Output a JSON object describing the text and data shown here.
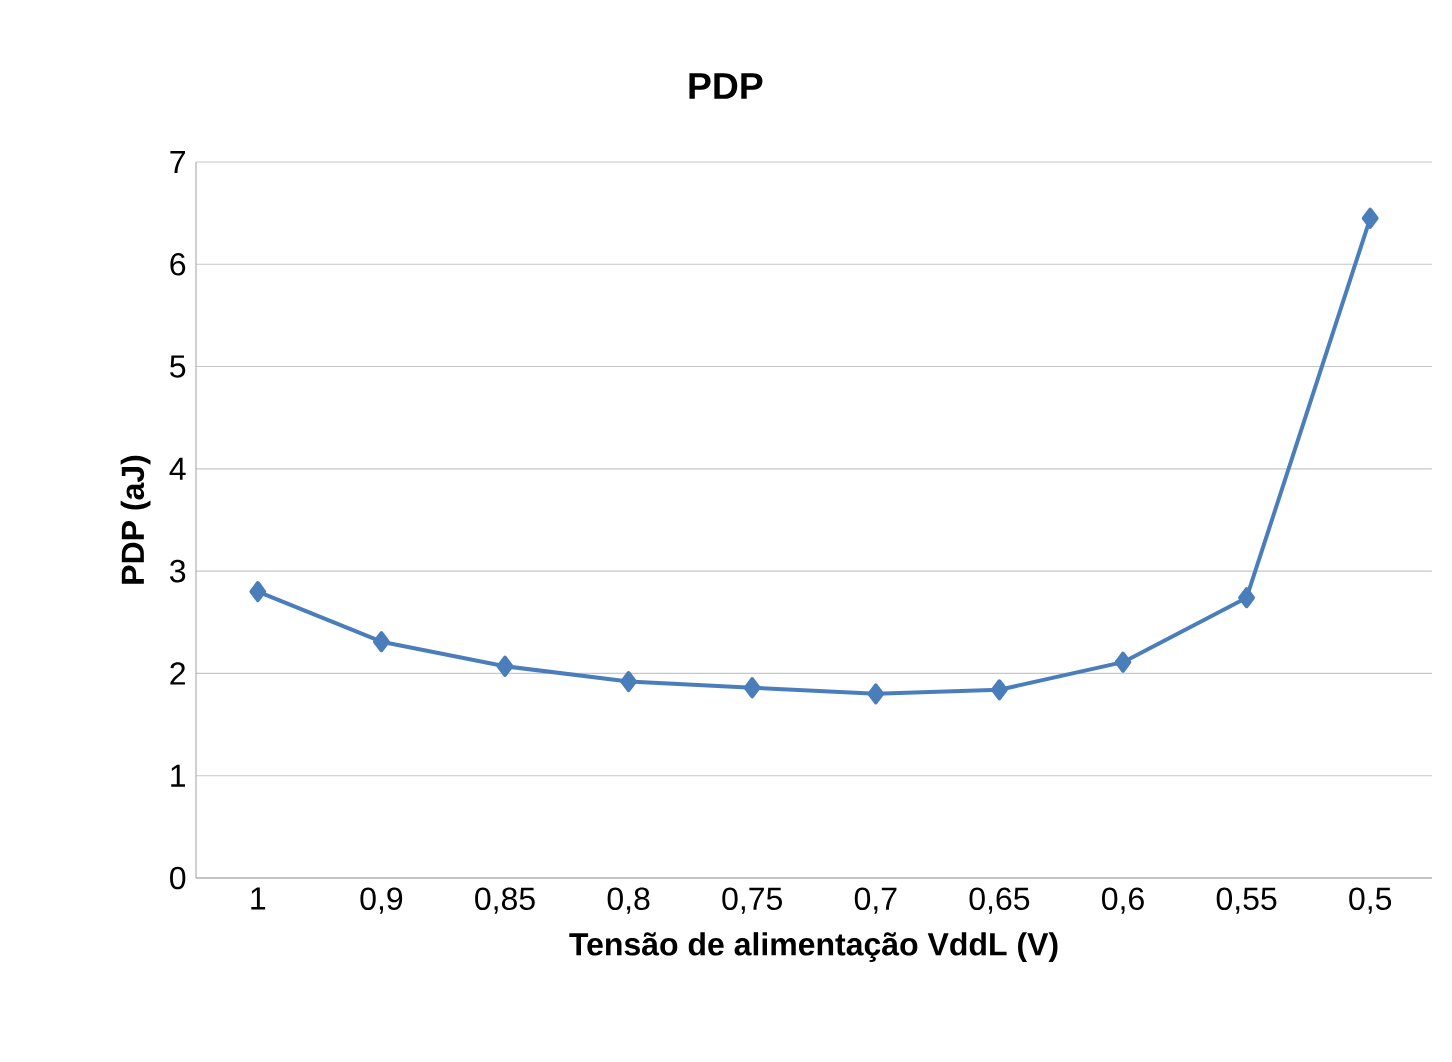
{
  "chart_data": {
    "type": "line",
    "title": "PDP",
    "xlabel": "Tensão de alimentação VddL (V)",
    "ylabel": "PDP (aJ)",
    "categories": [
      "1",
      "0,9",
      "0,85",
      "0,8",
      "0,75",
      "0,7",
      "0,65",
      "0,6",
      "0,55",
      "0,5"
    ],
    "series": [
      {
        "color": "#4a7ebb",
        "values": [
          2.8,
          2.31,
          2.07,
          1.92,
          1.86,
          1.8,
          1.84,
          2.11,
          2.74,
          6.45
        ]
      }
    ],
    "ylim": [
      0,
      7
    ],
    "yticks": [
      0,
      1,
      2,
      3,
      4,
      5,
      6,
      7
    ],
    "grid": "y",
    "marker": "diamond",
    "line_style": "solid"
  }
}
